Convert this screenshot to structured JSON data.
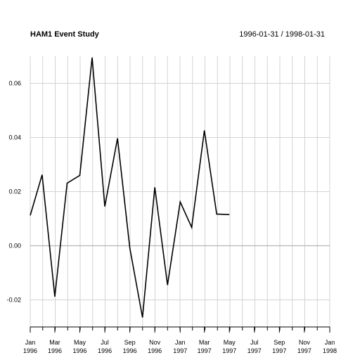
{
  "chart_data": {
    "type": "line",
    "title": "HAM1 Event Study",
    "date_range": "1996-01-31 / 1998-01-31",
    "ylim": [
      -0.03,
      0.07
    ],
    "y_ticks": [
      -0.02,
      0.0,
      0.02,
      0.04,
      0.06
    ],
    "y_tick_labels": [
      "-0.02",
      "0.00",
      "0.02",
      "0.04",
      "0.06"
    ],
    "grid": true,
    "x_start": "1996-01-31",
    "x_end": "1998-01-31",
    "x_ticks": [
      {
        "date": "1996-01-31",
        "month": "Jan",
        "year": "1996"
      },
      {
        "date": "1996-03-31",
        "month": "Mar",
        "year": "1996"
      },
      {
        "date": "1996-05-31",
        "month": "May",
        "year": "1996"
      },
      {
        "date": "1996-07-31",
        "month": "Jul",
        "year": "1996"
      },
      {
        "date": "1996-09-30",
        "month": "Sep",
        "year": "1996"
      },
      {
        "date": "1996-11-30",
        "month": "Nov",
        "year": "1996"
      },
      {
        "date": "1997-01-31",
        "month": "Jan",
        "year": "1997"
      },
      {
        "date": "1997-03-31",
        "month": "Mar",
        "year": "1997"
      },
      {
        "date": "1997-05-31",
        "month": "May",
        "year": "1997"
      },
      {
        "date": "1997-07-31",
        "month": "Jul",
        "year": "1997"
      },
      {
        "date": "1997-09-30",
        "month": "Sep",
        "year": "1997"
      },
      {
        "date": "1997-11-30",
        "month": "Nov",
        "year": "1997"
      },
      {
        "date": "1998-01-31",
        "month": "Jan",
        "year": "1998"
      }
    ],
    "series": [
      {
        "color": "#000000",
        "x": [
          "1996-01-31",
          "1996-02-29",
          "1996-03-31",
          "1996-04-30",
          "1996-05-31",
          "1996-06-30",
          "1996-07-31",
          "1996-08-31",
          "1996-09-30",
          "1996-10-31",
          "1996-11-30",
          "1996-12-31",
          "1997-01-31",
          "1997-02-28",
          "1997-03-31",
          "1997-04-30",
          "1997-05-31"
        ],
        "y": [
          0.0112,
          0.0262,
          -0.0188,
          0.0231,
          0.026,
          0.0695,
          0.0145,
          0.0397,
          -0.0008,
          -0.0265,
          0.0216,
          -0.0145,
          0.0162,
          0.0068,
          0.0426,
          0.0117,
          0.0115
        ]
      }
    ]
  }
}
